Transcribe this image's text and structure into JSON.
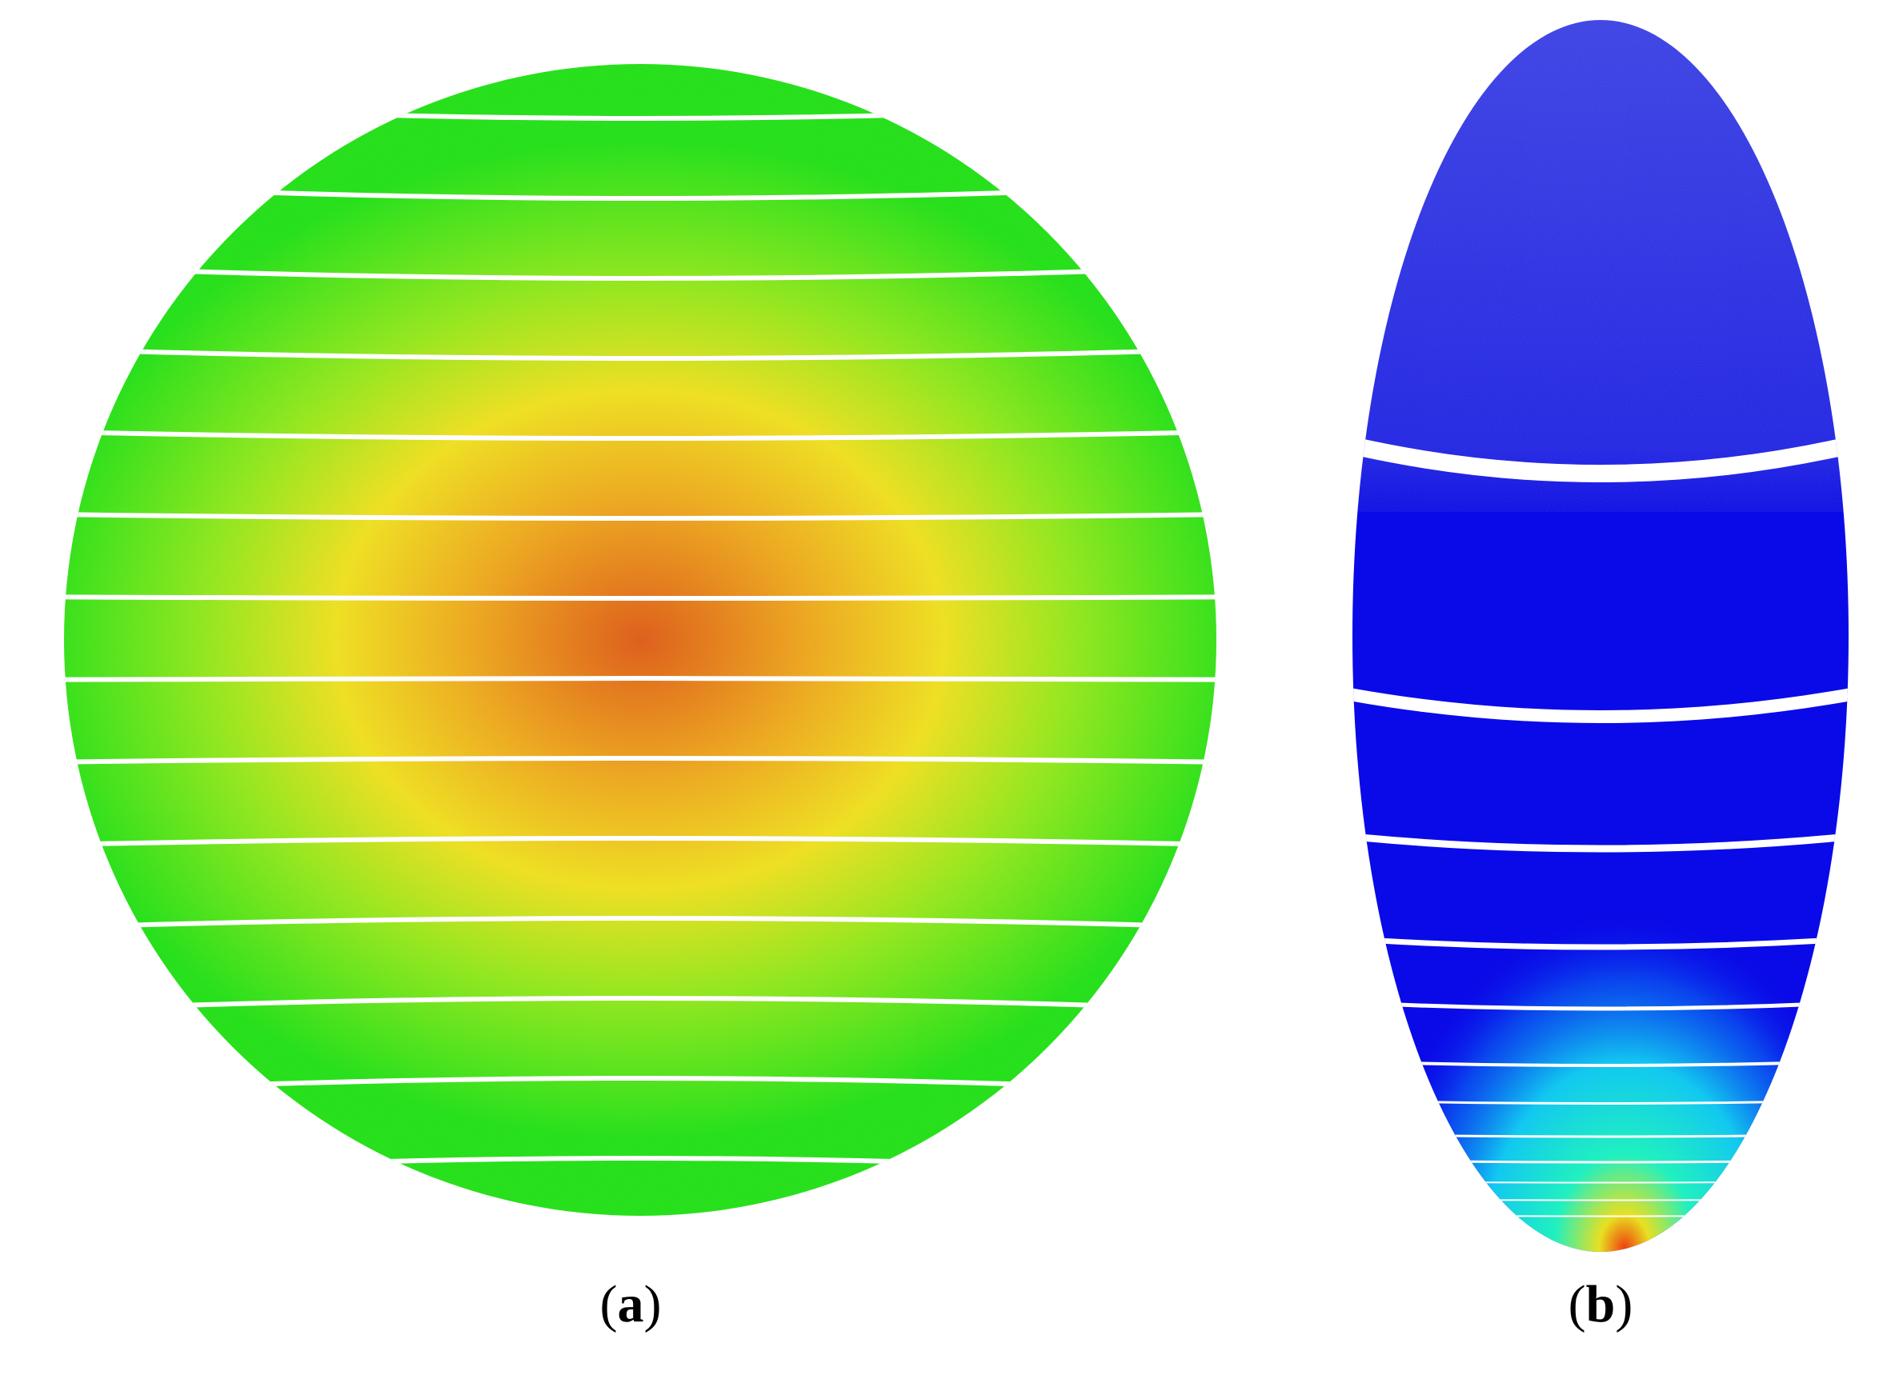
{
  "panels": [
    {
      "id": "a",
      "caption_open": "(",
      "caption_letter": "a",
      "caption_close": ")",
      "shape": "circle",
      "gradient_center_color": "#e05a12",
      "gradient_mid_color": "#f2e21a",
      "gradient_edge_color": "#1ee312",
      "gap_color": "#ffffff"
    },
    {
      "id": "b",
      "caption_open": "(",
      "caption_letter": "b",
      "caption_close": ")",
      "shape": "ellipse",
      "top_color": "#3a40e8",
      "body_color": "#0a0ae8",
      "hot_spot_colors": [
        "#0a5cf0",
        "#12c8f0",
        "#20f0c0",
        "#e8e020",
        "#f04010"
      ],
      "gap_color": "#ffffff"
    }
  ]
}
